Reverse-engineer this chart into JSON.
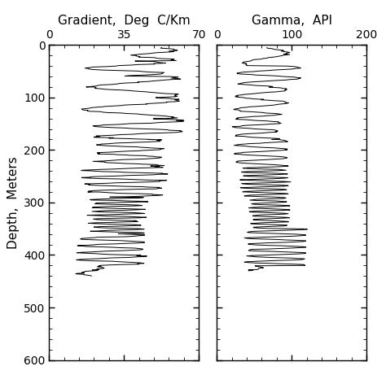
{
  "title_left": "Gradient,  Deg  C/Km",
  "title_right": "Gamma,  API",
  "ylabel": "Depth,  Meters",
  "xlim_left": [
    0,
    70
  ],
  "xlim_right": [
    0,
    200
  ],
  "xticks_left": [
    0,
    35,
    70
  ],
  "xticks_right": [
    0,
    100,
    200
  ],
  "ylim": [
    600,
    0
  ],
  "yticks": [
    0,
    100,
    200,
    300,
    400,
    500,
    600
  ],
  "line_color": "black",
  "bg_color": "white",
  "title_fontsize": 11,
  "label_fontsize": 11,
  "tick_fontsize": 10
}
